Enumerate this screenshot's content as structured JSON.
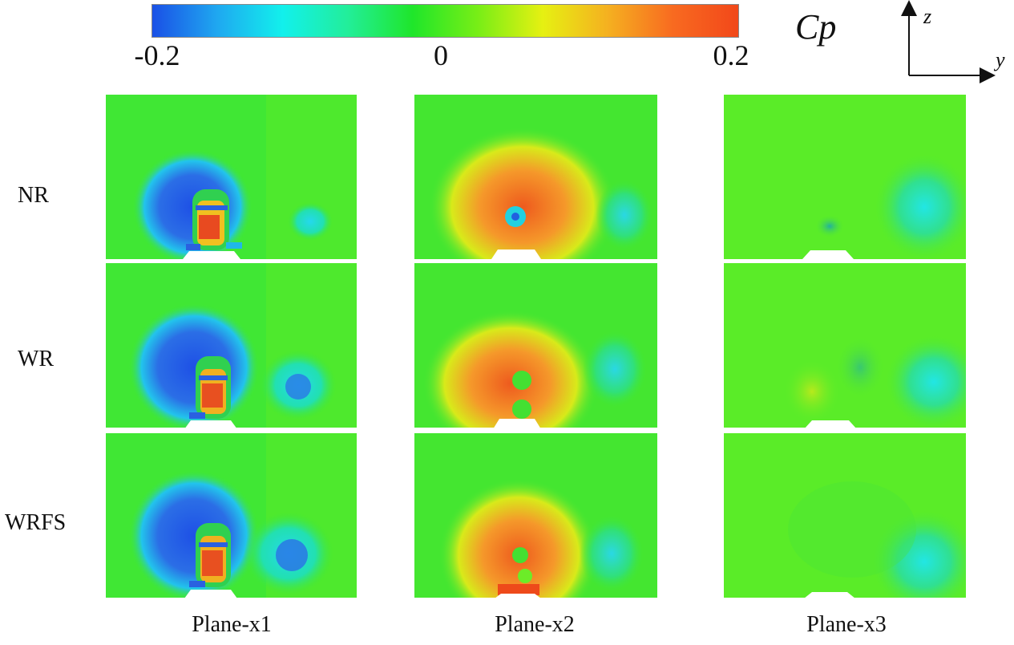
{
  "colorbar": {
    "title": "Cp",
    "min_label": "-0.2",
    "mid_label": "0",
    "max_label": "0.2",
    "stops": [
      "#1a50e6",
      "#1fa8f0",
      "#12f0ec",
      "#22ee9a",
      "#1fe62a",
      "#78ee16",
      "#e6f012",
      "#f5b020",
      "#f86a20",
      "#f2481a"
    ]
  },
  "axes": {
    "vertical": "z",
    "horizontal": "y"
  },
  "rows": [
    {
      "label": "NR"
    },
    {
      "label": "WR"
    },
    {
      "label": "WRFS"
    }
  ],
  "columns": [
    {
      "label": "Plane-x1"
    },
    {
      "label": "Plane-x2"
    },
    {
      "label": "Plane-x3"
    }
  ],
  "colors": {
    "field_green": "#3fe832",
    "field_light_green": "#66ee22",
    "suction_blue": "#2868e8",
    "cyan": "#2ae6e6",
    "pressure_orange": "#f5982a",
    "pressure_red": "#ee5a1e",
    "yellow": "#d4ea1a"
  }
}
